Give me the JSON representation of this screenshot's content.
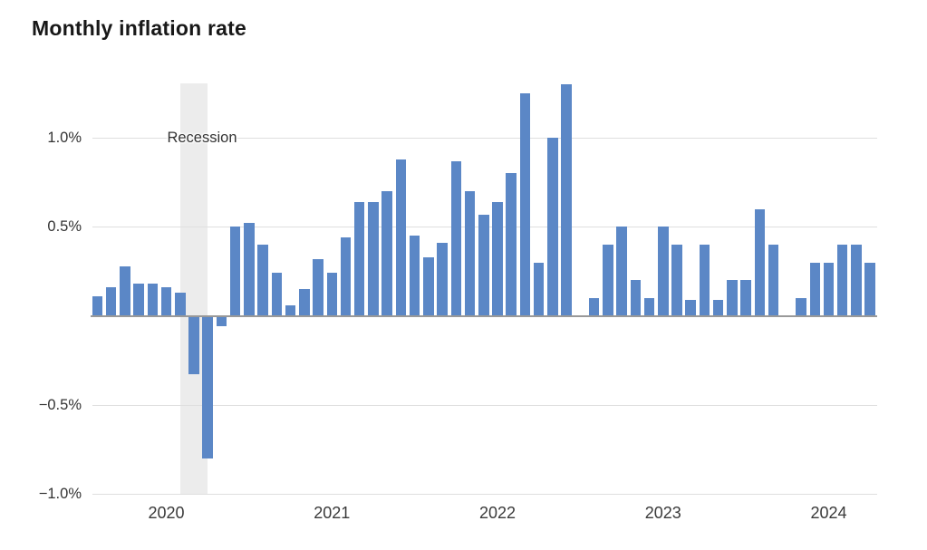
{
  "title": "Monthly inflation rate",
  "colors": {
    "bar": "#5b87c6",
    "grid_line": "#dfdfdf",
    "zero_line": "#999999",
    "recession_band": "#ececec",
    "axis_text": "#333333",
    "year_text": "#3a3a3a",
    "title_text": "#181818",
    "background": "#ffffff"
  },
  "chart_data": {
    "type": "bar",
    "title": "Monthly inflation rate",
    "xlabel": "",
    "ylabel": "",
    "unit": "%",
    "ylim": [
      -1.0,
      1.32
    ],
    "grid": "horizontal",
    "legend": "none",
    "x": [
      "2019-08",
      "2019-09",
      "2019-10",
      "2019-11",
      "2019-12",
      "2020-01",
      "2020-02",
      "2020-03",
      "2020-04",
      "2020-05",
      "2020-06",
      "2020-07",
      "2020-08",
      "2020-09",
      "2020-10",
      "2020-11",
      "2020-12",
      "2021-01",
      "2021-02",
      "2021-03",
      "2021-04",
      "2021-05",
      "2021-06",
      "2021-07",
      "2021-08",
      "2021-09",
      "2021-10",
      "2021-11",
      "2021-12",
      "2022-01",
      "2022-02",
      "2022-03",
      "2022-04",
      "2022-05",
      "2022-06",
      "2022-07",
      "2022-08",
      "2022-09",
      "2022-10",
      "2022-11",
      "2022-12",
      "2023-01",
      "2023-02",
      "2023-03",
      "2023-04",
      "2023-05",
      "2023-06",
      "2023-07",
      "2023-08",
      "2023-09",
      "2023-10",
      "2023-11",
      "2023-12",
      "2024-01",
      "2024-02",
      "2024-03",
      "2024-04"
    ],
    "values": [
      0.11,
      0.16,
      0.28,
      0.18,
      0.18,
      0.16,
      0.13,
      -0.33,
      -0.8,
      -0.06,
      0.5,
      0.52,
      0.4,
      0.24,
      0.06,
      0.15,
      0.32,
      0.24,
      0.44,
      0.64,
      0.64,
      0.7,
      0.88,
      0.45,
      0.33,
      0.41,
      0.87,
      0.7,
      0.57,
      0.64,
      0.8,
      1.25,
      0.3,
      1.0,
      1.3,
      0.0,
      0.1,
      0.4,
      0.5,
      0.2,
      0.1,
      0.5,
      0.4,
      0.09,
      0.4,
      0.09,
      0.2,
      0.2,
      0.6,
      0.4,
      0.0,
      0.1,
      0.3,
      0.3,
      0.4,
      0.4,
      0.3
    ],
    "y_ticks": [
      {
        "value": 1.0,
        "label": "1.0%"
      },
      {
        "value": 0.5,
        "label": "0.5%"
      },
      {
        "value": -0.5,
        "label": "−0.5%"
      },
      {
        "value": -1.0,
        "label": "−1.0%"
      }
    ],
    "x_ticks": [
      {
        "index": 5,
        "label": "2020"
      },
      {
        "index": 17,
        "label": "2021"
      },
      {
        "index": 29,
        "label": "2022"
      },
      {
        "index": 41,
        "label": "2023"
      },
      {
        "index": 53,
        "label": "2024"
      }
    ],
    "annotation": {
      "label": "Recession",
      "start_month": "2020-02",
      "end_month": "2020-04",
      "start_index": 6,
      "end_index": 8
    }
  }
}
